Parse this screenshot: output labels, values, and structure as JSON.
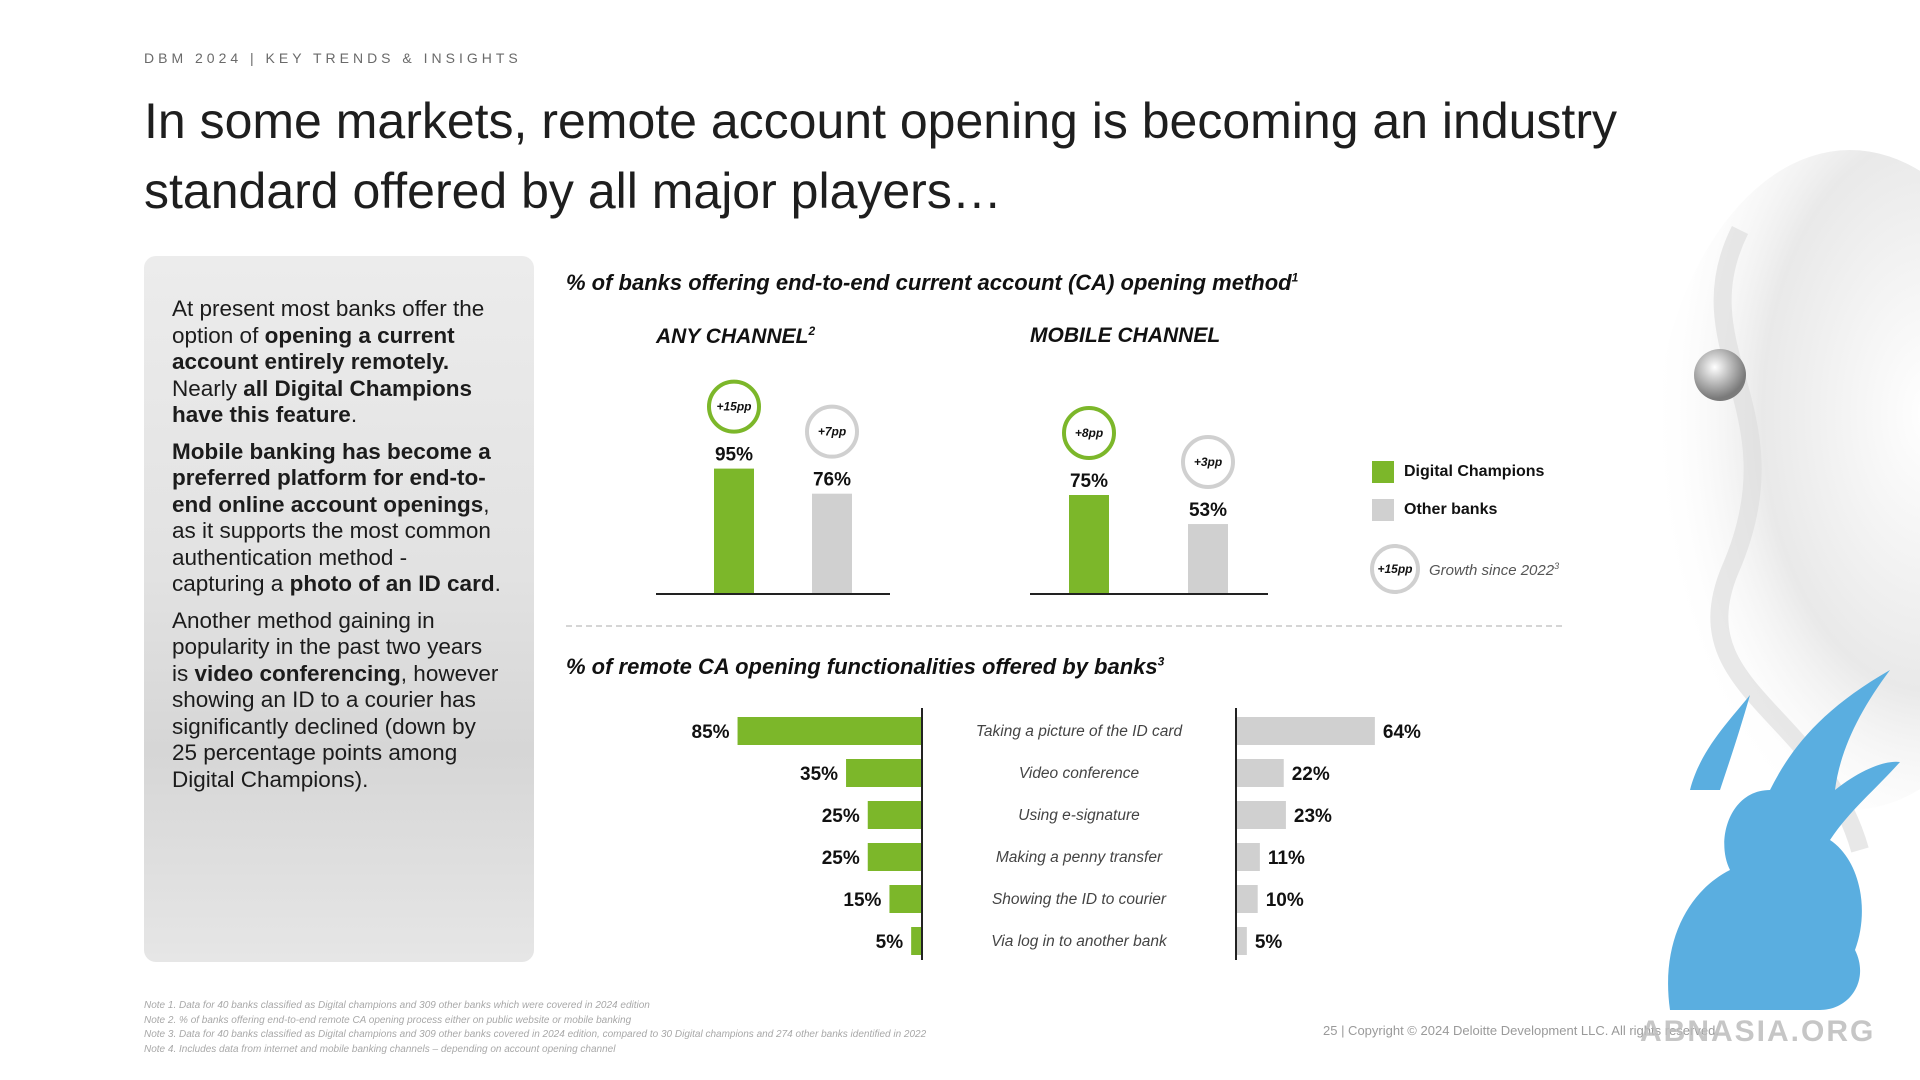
{
  "header": {
    "kicker": "DBM 2024 | KEY TRENDS & INSIGHTS",
    "title": "In some markets, remote account opening is becoming an industry standard offered by all major players…"
  },
  "panel": {
    "p1_a": "At present most banks offer the option of ",
    "p1_b": "opening a current account entirely remotely.",
    "p1_c": " Nearly ",
    "p1_d": "all Digital Champions have this feature",
    "p1_e": ".",
    "p2_a": "Mobile banking has become a preferred platform for end-to-end online account openings",
    "p2_b": ", as it supports the most common authentication method - capturing a ",
    "p2_c": "photo of an ID card",
    "p2_d": ".",
    "p3_a": "Another method gaining in popularity in the past two years is ",
    "p3_b": "video conferencing",
    "p3_c": ", however showing an ID to a courier has significantly declined (down by 25 percentage points among Digital Champions)."
  },
  "section1": {
    "title": "% of banks offering end-to-end current account (CA) opening method",
    "sup": "1"
  },
  "section2": {
    "title": "% of remote CA opening functionalities offered by banks",
    "sup": "3"
  },
  "colors": {
    "champion": "#7cb72a",
    "other": "#d0d0d0",
    "axis": "#222222"
  },
  "legend": {
    "champions": "Digital Champions",
    "others": "Other banks",
    "growth_badge": "+15pp",
    "growth_label": "Growth since 2022",
    "growth_sup": "3"
  },
  "chart_data": [
    {
      "type": "bar",
      "title": "ANY CHANNEL",
      "title_sup": "2",
      "ylim": [
        0,
        100
      ],
      "categories": [
        "Digital Champions",
        "Other banks"
      ],
      "values": [
        95,
        76
      ],
      "value_labels": [
        "95%",
        "76%"
      ],
      "growth": [
        "+15pp",
        "+7pp"
      ]
    },
    {
      "type": "bar",
      "title": "MOBILE CHANNEL",
      "title_sup": "",
      "ylim": [
        0,
        100
      ],
      "categories": [
        "Digital Champions",
        "Other banks"
      ],
      "values": [
        75,
        53
      ],
      "value_labels": [
        "75%",
        "53%"
      ],
      "growth": [
        "+8pp",
        "+3pp"
      ]
    },
    {
      "type": "bar",
      "orientation": "horizontal-butterfly",
      "title": "% of remote CA opening functionalities offered by banks",
      "xlim": [
        0,
        100
      ],
      "categories": [
        "Taking a picture of the ID card",
        "Video conference",
        "Using e-signature",
        "Making a penny transfer",
        "Showing the ID to courier",
        "Via log in to another bank"
      ],
      "series": [
        {
          "name": "Digital Champions",
          "values": [
            85,
            35,
            25,
            25,
            15,
            5
          ],
          "labels": [
            "85%",
            "35%",
            "25%",
            "25%",
            "15%",
            "5%"
          ]
        },
        {
          "name": "Other banks",
          "values": [
            64,
            22,
            23,
            11,
            10,
            5
          ],
          "labels": [
            "64%",
            "22%",
            "23%",
            "11%",
            "10%",
            "5%"
          ]
        }
      ]
    }
  ],
  "footnotes": [
    "Note 1. Data for 40 banks classified as Digital champions and 309 other banks which were covered in 2024 edition",
    "Note 2. % of banks offering end-to-end remote CA opening process either on public website or mobile banking",
    "Note 3. Data for 40 banks classified as Digital champions and 309 other banks covered in 2024 edition, compared to 30 Digital champions and 274 other banks identified in 2022",
    "Note 4. Includes data from internet and mobile banking channels – depending on account opening channel"
  ],
  "footer": {
    "copyright": "25 | Copyright © 2024 Deloitte Development LLC. All rights reserved.",
    "watermark": "ABNASIA.ORG"
  }
}
